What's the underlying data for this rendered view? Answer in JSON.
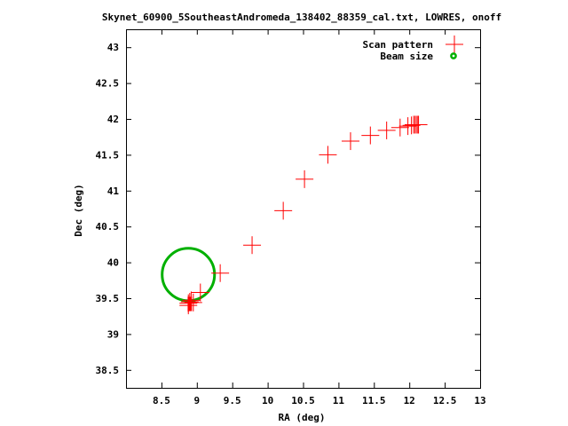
{
  "chart_data": {
    "type": "scatter",
    "title": "Skynet_60900_5SoutheastAndromeda_138402_88359_cal.txt, LOWRES, onoff",
    "xlabel": "RA (deg)",
    "ylabel": "Dec (deg)",
    "xlim": [
      8.0,
      13.0
    ],
    "ylim": [
      38.25,
      43.25
    ],
    "xticks": [
      "8.5",
      "9",
      "9.5",
      "10",
      "10.5",
      "11",
      "11.5",
      "12",
      "12.5",
      "13"
    ],
    "yticks": [
      "38.5",
      "39",
      "39.5",
      "40",
      "40.5",
      "41",
      "41.5",
      "42",
      "42.5",
      "43"
    ],
    "grid": false,
    "legend_position": "top-right",
    "series": [
      {
        "name": "Scan pattern",
        "marker": "plus",
        "color": "#ff0000",
        "points": [
          [
            8.88,
            39.4
          ],
          [
            8.88,
            39.43
          ],
          [
            8.9,
            39.45
          ],
          [
            8.92,
            39.47
          ],
          [
            8.95,
            39.44
          ],
          [
            9.05,
            39.58
          ],
          [
            9.33,
            39.85
          ],
          [
            9.78,
            40.24
          ],
          [
            10.22,
            40.72
          ],
          [
            10.52,
            41.16
          ],
          [
            10.85,
            41.5
          ],
          [
            11.17,
            41.69
          ],
          [
            11.45,
            41.77
          ],
          [
            11.68,
            41.84
          ],
          [
            11.87,
            41.88
          ],
          [
            11.98,
            41.9
          ],
          [
            12.03,
            41.91
          ],
          [
            12.06,
            41.92
          ],
          [
            12.08,
            41.92
          ],
          [
            12.1,
            41.92
          ],
          [
            12.12,
            41.92
          ],
          [
            12.13,
            41.92
          ]
        ],
        "dense_cluster": {
          "x": [
            8.87,
            8.93
          ],
          "y": [
            39.32,
            39.52
          ]
        }
      },
      {
        "name": "Beam size",
        "marker": "circle",
        "color": "#00b000",
        "center": [
          8.88,
          39.83
        ],
        "radius_deg": 0.37
      }
    ]
  }
}
